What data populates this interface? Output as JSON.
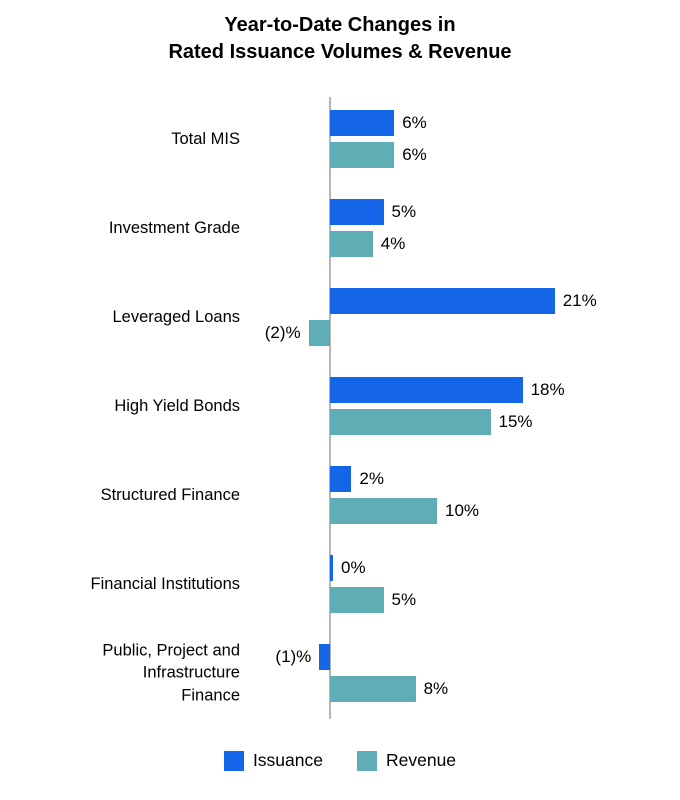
{
  "title": "Year-to-Date Changes in\nRated Issuance Volumes & Revenue",
  "legend": [
    {
      "label": "Issuance",
      "color": "#1565e8"
    },
    {
      "label": "Revenue",
      "color": "#5fadb5"
    }
  ],
  "chart_data": {
    "type": "bar",
    "orientation": "horizontal",
    "title": "Year-to-Date Changes in Rated Issuance Volumes & Revenue",
    "categories": [
      "Total MIS",
      "Investment Grade",
      "Leveraged Loans",
      "High Yield Bonds",
      "Structured Finance",
      "Financial Institutions",
      "Public, Project and\nInfrastructure\nFinance"
    ],
    "series": [
      {
        "name": "Issuance",
        "color": "#1565e8",
        "values": [
          6,
          5,
          21,
          18,
          2,
          0,
          -1
        ],
        "labels": [
          "6%",
          "5%",
          "21%",
          "18%",
          "2%",
          "0%",
          "(1)%"
        ]
      },
      {
        "name": "Revenue",
        "color": "#5fadb5",
        "values": [
          6,
          4,
          -2,
          15,
          10,
          5,
          8
        ],
        "labels": [
          "6%",
          "4%",
          "(2)%",
          "15%",
          "10%",
          "5%",
          "8%"
        ]
      }
    ],
    "xlim": [
      -4,
      24
    ],
    "grid": false,
    "axis_line_color": "#b5b5b5",
    "legend_position": "bottom",
    "value_format": "percent, negatives shown in parentheses"
  }
}
